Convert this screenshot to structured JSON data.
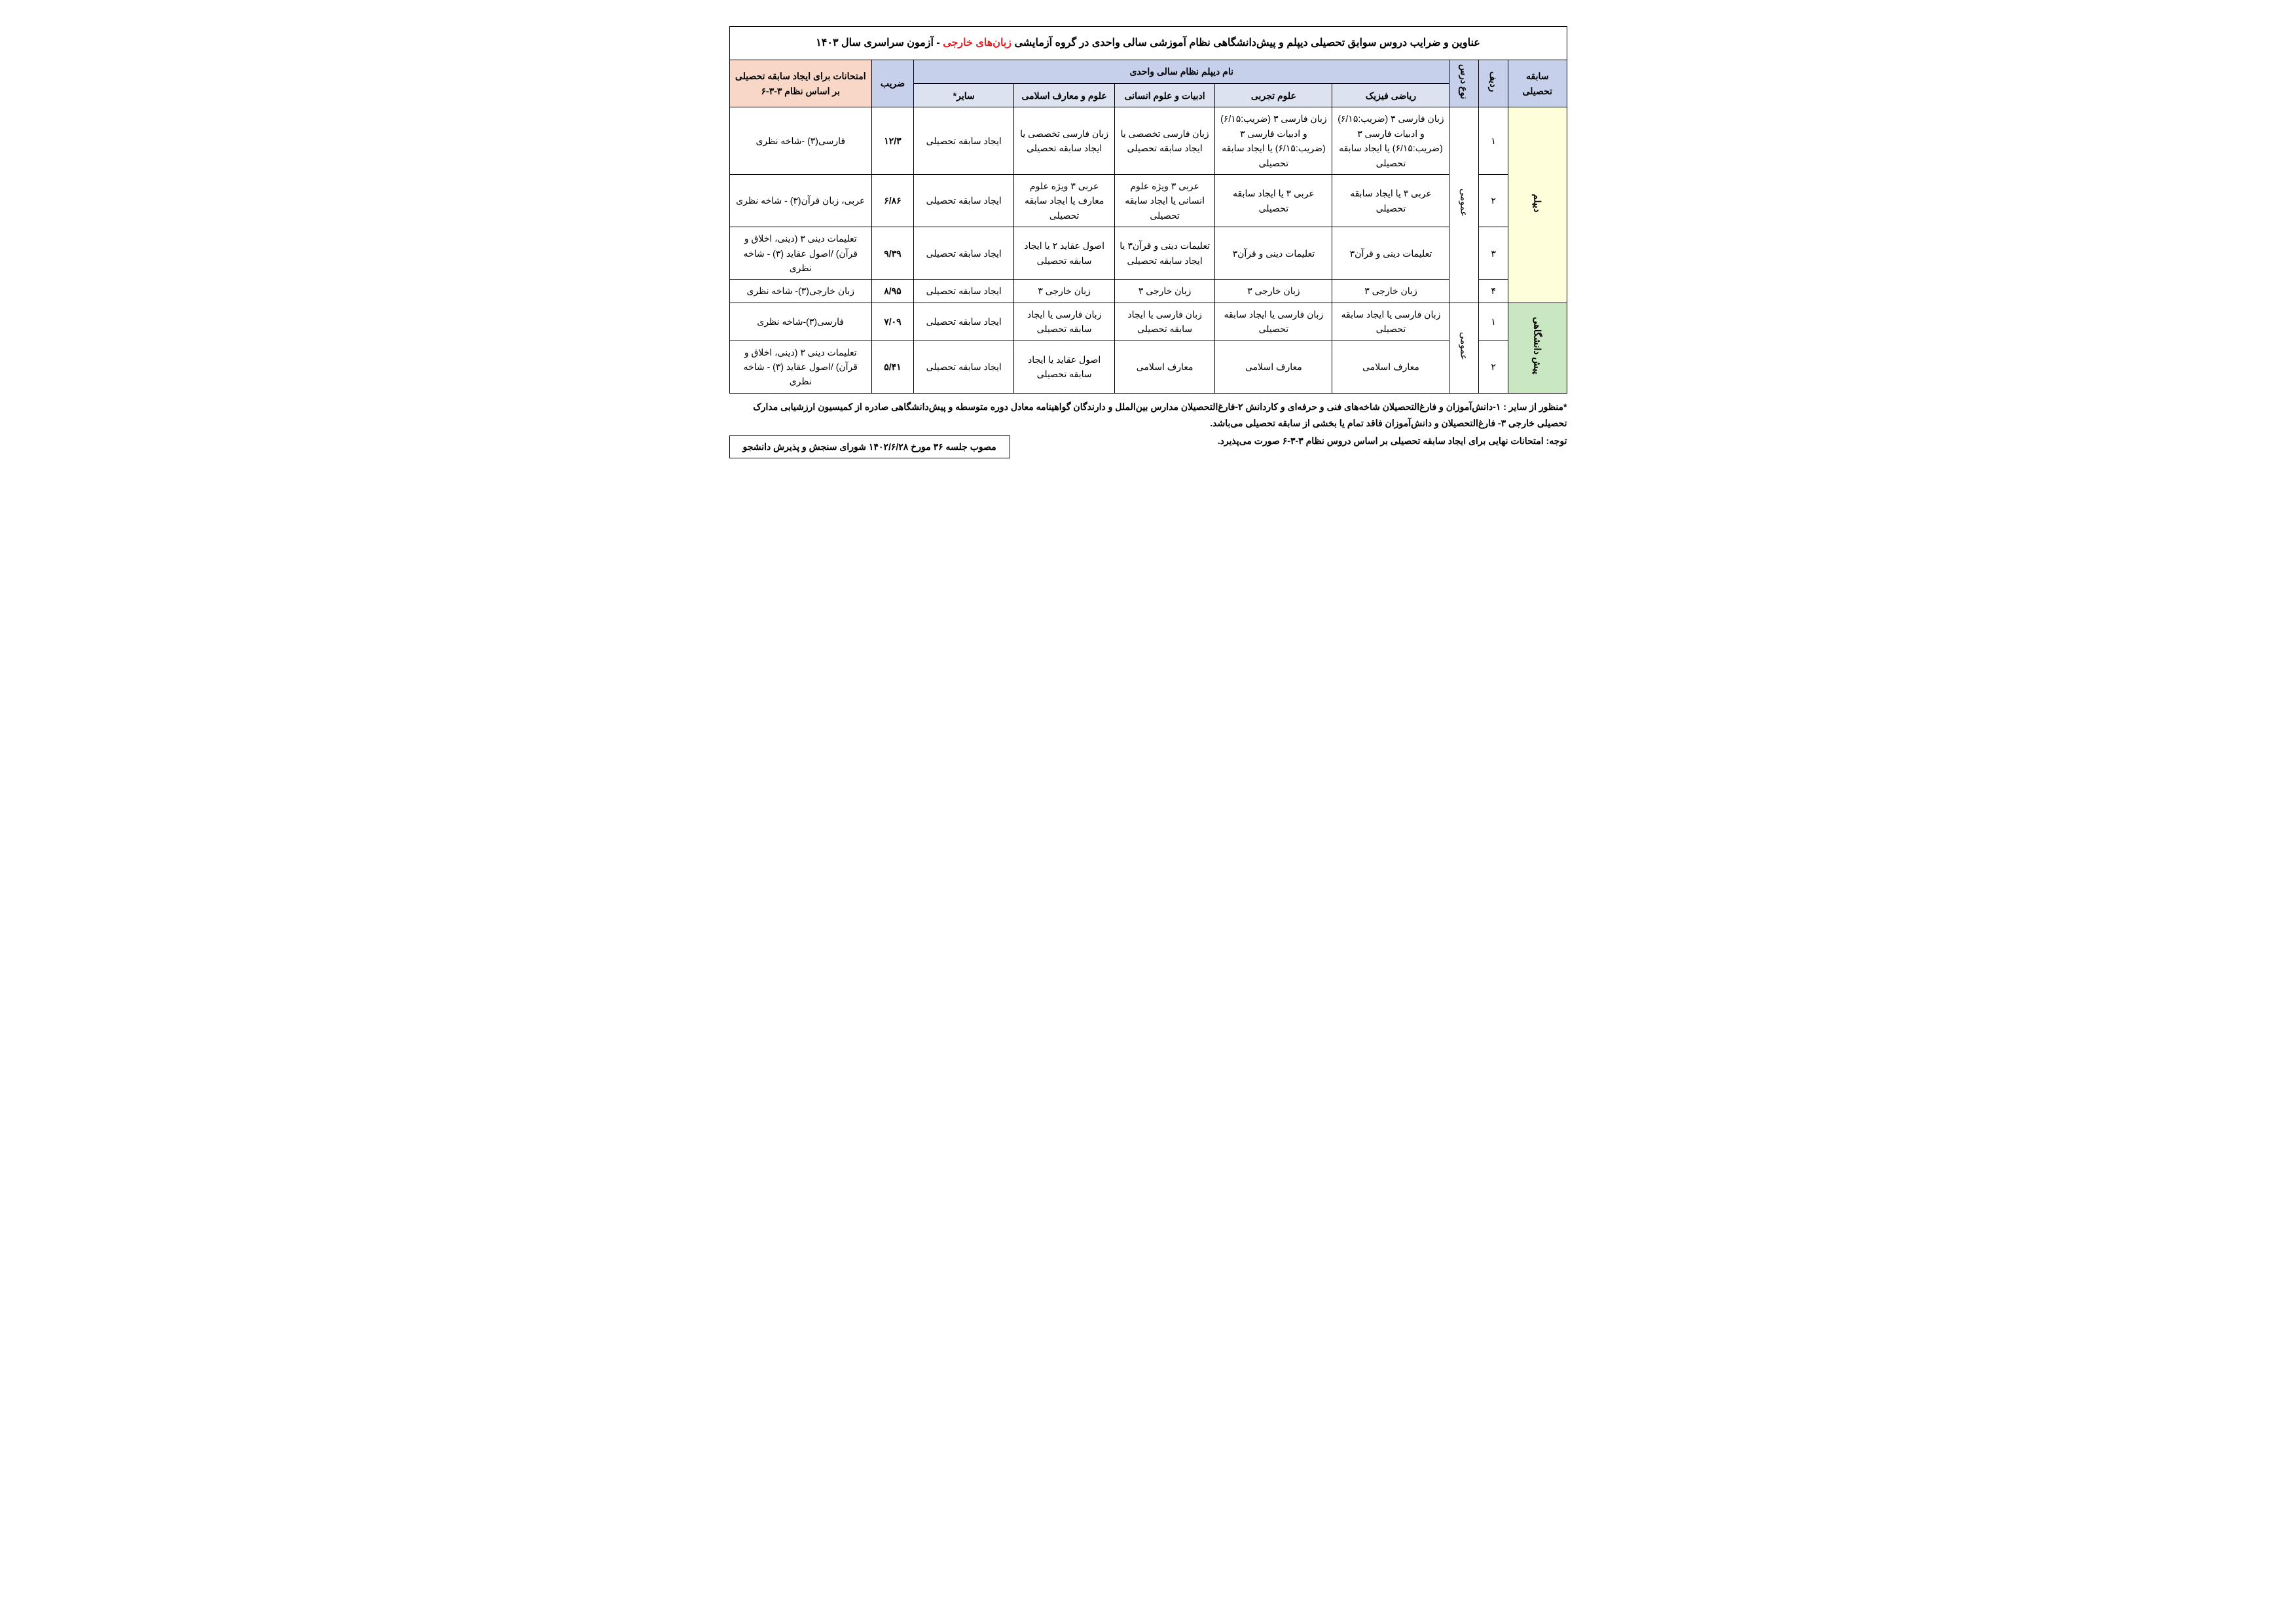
{
  "colors": {
    "header_blue": "#c7d0eb",
    "header_blue_light": "#dde2f0",
    "exam_header": "#f8d7c6",
    "diploma_bg": "#fffedb",
    "preuni_bg": "#c9e7c1",
    "red": "#e22222",
    "border": "#000000",
    "background": "#ffffff"
  },
  "title_parts": {
    "a": "عناوین و ضرایب دروس سوابق تحصیلی دیپلم و پیش‌دانشگاهی نظام آموزشی سالی واحدی در گروه آزمایشی ",
    "b": "زبان‌های خارجی",
    "c": " - آزمون سراسری سال ۱۴۰۳"
  },
  "headers": {
    "record": "سابقه تحصیلی",
    "row": "ردیف",
    "course_type": "نوع درس",
    "diploma_name": "نام دیپلم نظام سالی واحدی",
    "coef": "ضریب",
    "exams": "امتحانات برای ایجاد سابقه تحصیلی بر اساس نظام ۳-۳-۶",
    "math": "ریاضی فیزیک",
    "science": "علوم تجربی",
    "humanities": "ادبیات و علوم انسانی",
    "islamic": "علوم و معارف اسلامی",
    "other": "سایر*"
  },
  "group_labels": {
    "diploma": "دیپلم",
    "preuni": "پیش دانشگاهی",
    "general": "عمومی"
  },
  "rows": [
    {
      "num": "۱",
      "math": "زبان فارسی ۳ (ضریب:۶/۱۵) و ادبیات فارسی ۳ (ضریب:۶/۱۵) یا ایجاد سابقه تحصیلی",
      "science": "زبان فارسی ۳ (ضریب:۶/۱۵) و ادبیات فارسی ۳ (ضریب:۶/۱۵) یا ایجاد سابقه تحصیلی",
      "humanities": "زبان فارسی تخصصی یا ایجاد سابقه تحصیلی",
      "islamic": "زبان فارسی تخصصی یا ایجاد سابقه تحصیلی",
      "other": "ایجاد سابقه تحصیلی",
      "coef": "۱۲/۳",
      "exam": "فارسی(۳) -شاخه نظری"
    },
    {
      "num": "۲",
      "math": "عربی ۳ یا ایجاد سابقه تحصیلی",
      "science": "عربی ۳ یا ایجاد سابقه تحصیلی",
      "humanities": "عربی ۳ ویژه علوم انسانی یا ایجاد سابقه تحصیلی",
      "islamic": "عربی ۳ ویژه علوم معارف یا ایجاد سابقه تحصیلی",
      "other": "ایجاد سابقه تحصیلی",
      "coef": "۶/۸۶",
      "exam": "عربی، زبان قرآن(۳) - شاخه نظری"
    },
    {
      "num": "۳",
      "math": "تعلیمات دینی و قرآن۳",
      "science": "تعلیمات دینی و قرآن۳",
      "humanities": "تعلیمات دینی و قرآن۳ یا ایجاد سابقه تحصیلی",
      "islamic": "اصول عقاید ۲ یا ایجاد سابقه تحصیلی",
      "other": "ایجاد سابقه تحصیلی",
      "coef": "۹/۳۹",
      "exam": "تعلیمات دینی ۳ (دینی، اخلاق و قرآن)  /اصول عقاید (۳) - شاخه نظری"
    },
    {
      "num": "۴",
      "math": "زبان خارجی ۳",
      "science": "زبان خارجی ۳",
      "humanities": "زبان خارجی ۳",
      "islamic": "زبان خارجی ۳",
      "other": "ایجاد سابقه تحصیلی",
      "coef": "۸/۹۵",
      "exam": "زبان خارجی(۳)- شاخه نظری"
    },
    {
      "num": "۱",
      "math": "زبان فارسی یا ایجاد سابقه تحصیلی",
      "science": "زبان فارسی یا ایجاد سابقه تحصیلی",
      "humanities": "زبان فارسی یا ایجاد سابقه تحصیلی",
      "islamic": "زبان فارسی یا ایجاد سابقه تحصیلی",
      "other": "ایجاد سابقه تحصیلی",
      "coef": "۷/۰۹",
      "exam": "فارسی(۳)-شاخه نظری"
    },
    {
      "num": "۲",
      "math": "معارف اسلامی",
      "science": "معارف اسلامی",
      "humanities": "معارف اسلامی",
      "islamic": "اصول عقاید یا ایجاد سابقه تحصیلی",
      "other": "ایجاد سابقه تحصیلی",
      "coef": "۵/۴۱",
      "exam": "تعلیمات دینی ۳ (دینی، اخلاق و قرآن)  /اصول عقاید (۳) - شاخه نظری"
    }
  ],
  "footnote": "*منظور از سایر : ۱-دانش‌آموزان و فارغ‌التحصیلان شاخه‌های فنی و حرفه‌ای و کاردانش ۲-فارغ‌التحصیلان مدارس بین‌الملل و دارندگان گواهینامه معادل دوره متوسطه و پیش‌دانشگاهی صادره از کمیسیون ارزشیابی مدارک تحصیلی خارجی ۳- فارغ‌التحصیلان و دانش‌آموزان فاقد تمام یا بخشی از سابقه تحصیلی می‌باشد.",
  "note": "توجه: امتحانات نهایی برای ایجاد سابقه تحصیلی بر اساس دروس  نظام ۳-۳-۶ صورت می‌پذیرد.",
  "approval": "مصوب جلسه ۳۶ مورخ ۱۴۰۲/۶/۲۸ شورای سنجش و پذیرش دانشجو"
}
